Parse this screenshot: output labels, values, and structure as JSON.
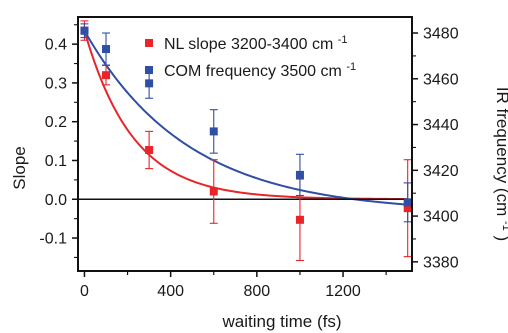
{
  "chart_data": {
    "type": "scatter",
    "title": "",
    "xlabel": "waiting time (fs)",
    "ylabel": "Slope",
    "y2label": "IR frequency (cm",
    "y2label_sup": "-1",
    "y2label_tail": ")",
    "xlim": [
      -30,
      1520
    ],
    "ylim": [
      -0.185,
      0.47
    ],
    "y2lim": [
      3376,
      3487
    ],
    "xticks": [
      0,
      400,
      800,
      1200
    ],
    "yticks": [
      -0.1,
      0.0,
      0.1,
      0.2,
      0.3,
      0.4
    ],
    "ytick_labels": [
      "-0.1",
      "0.0",
      "0.1",
      "0.2",
      "0.3",
      "0.4"
    ],
    "y2ticks": [
      3380,
      3400,
      3420,
      3440,
      3460,
      3480
    ],
    "grid": false,
    "zero_line": true,
    "legend_position": "top-right",
    "series": [
      {
        "name": "NL slope 3200-3400 cm",
        "name_sup": "-1",
        "axis": "left",
        "color": "#e8262a",
        "x": [
          0,
          100,
          300,
          600,
          1000,
          1500
        ],
        "y": [
          0.435,
          0.32,
          0.127,
          0.02,
          -0.053,
          -0.023
        ],
        "err": [
          0.025,
          0.025,
          0.048,
          0.082,
          0.105,
          0.125
        ],
        "fit": {
          "model": "exponential",
          "y0": 0.435,
          "tau": 225,
          "offset": 0.0
        }
      },
      {
        "name": "COM frequency 3500 cm",
        "name_sup": "-1",
        "axis": "right",
        "color": "#2e4fa3",
        "x": [
          0,
          100,
          300,
          600,
          1000,
          1500
        ],
        "y": [
          3481,
          3473,
          3458,
          3437,
          3418,
          3406
        ],
        "err": [
          3,
          7,
          6.5,
          9.5,
          9,
          8.5
        ],
        "fit": {
          "model": "exponential",
          "y0": 3481,
          "tau": 480,
          "offset": 3401.5
        }
      }
    ]
  }
}
